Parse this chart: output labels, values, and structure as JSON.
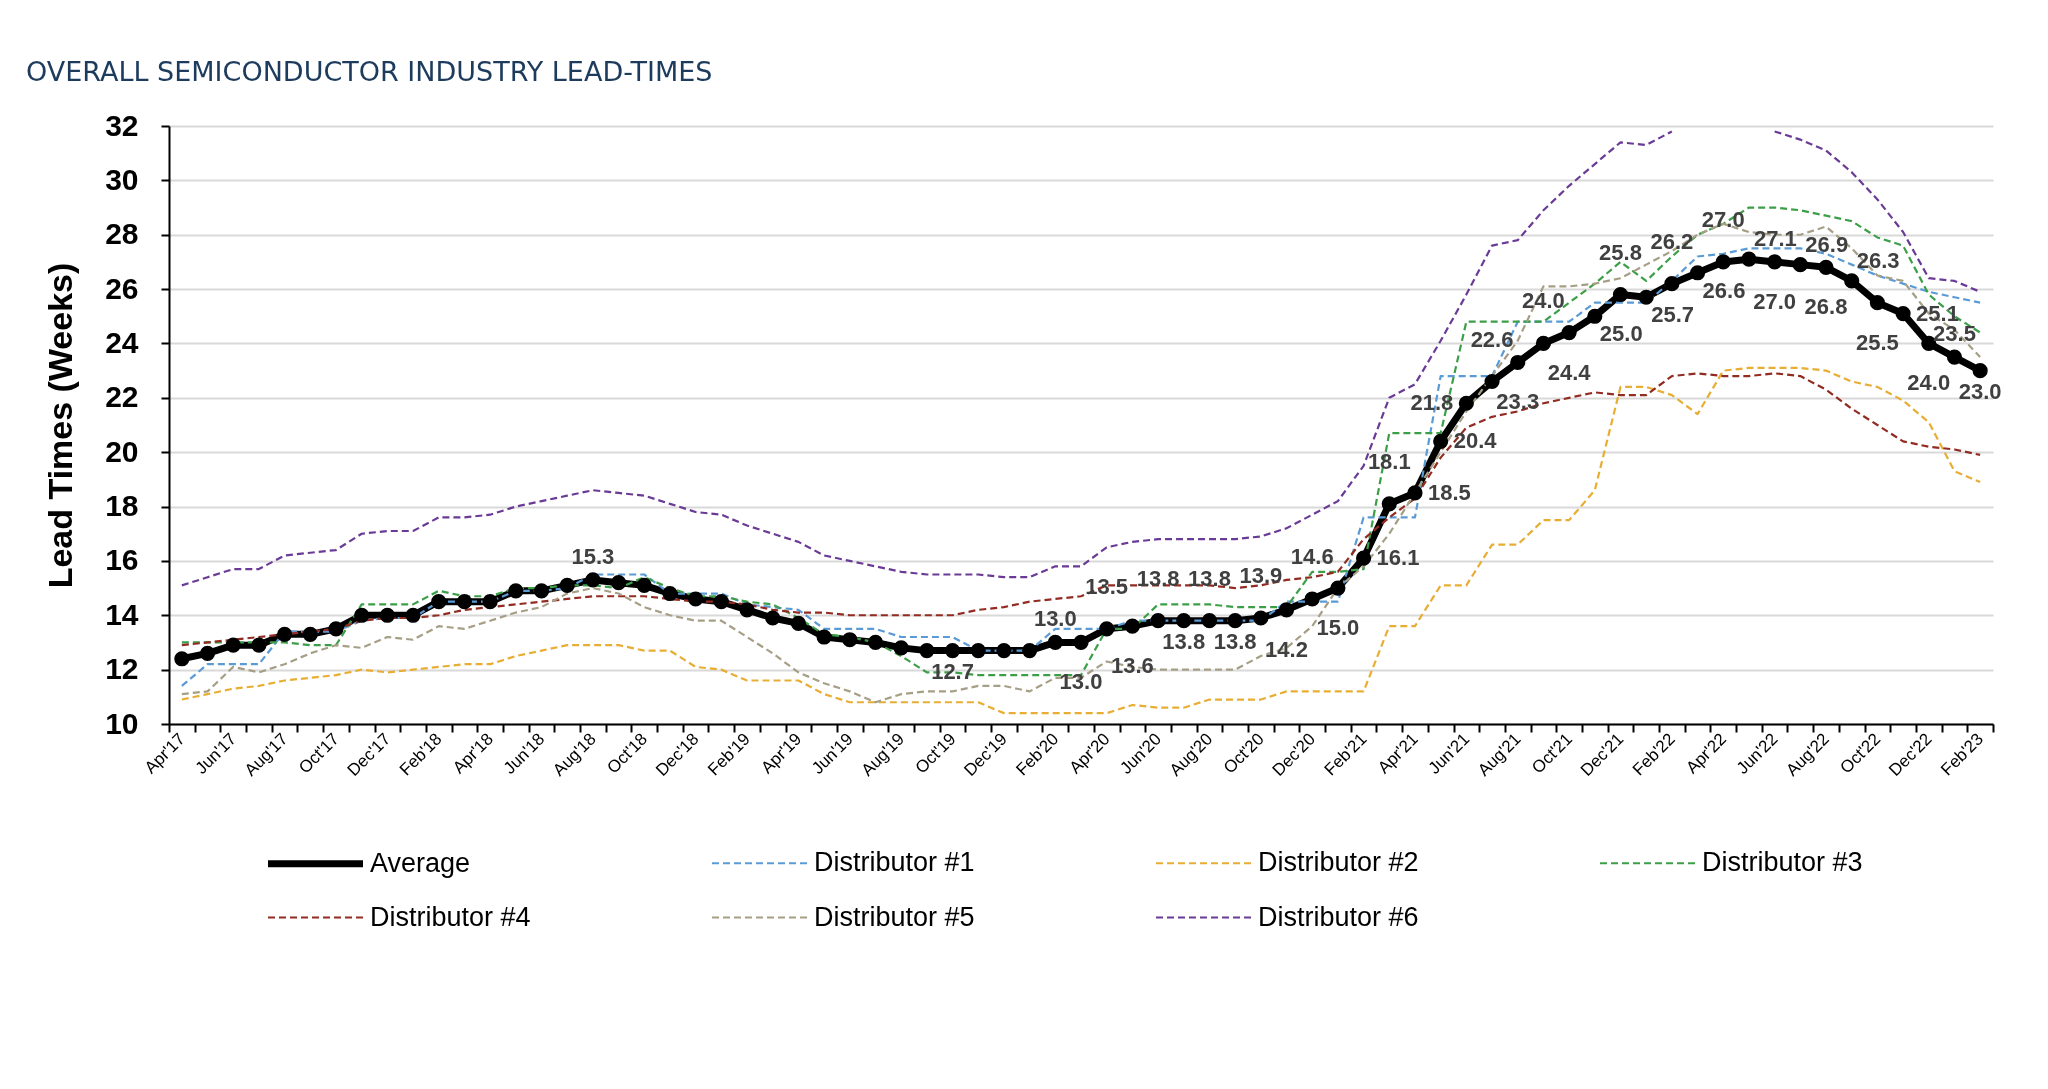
{
  "chart_data": {
    "type": "line",
    "title": "OVERALL SEMICONDUCTOR INDUSTRY LEAD-TIMES",
    "ylabel": "Lead Times (Weeks)",
    "categories": [
      "Apr'17",
      null,
      "Jun'17",
      null,
      "Aug'17",
      null,
      "Oct'17",
      null,
      "Dec'17",
      null,
      "Feb'18",
      null,
      "Apr'18",
      null,
      "Jun'18",
      null,
      "Aug'18",
      null,
      "Oct'18",
      null,
      "Dec'18",
      null,
      "Feb'19",
      null,
      "Apr'19",
      null,
      "Jun'19",
      null,
      "Aug'19",
      null,
      "Oct'19",
      null,
      "Dec'19",
      null,
      "Feb'20",
      null,
      "Apr'20",
      null,
      "Jun'20",
      null,
      "Aug'20",
      null,
      "Oct'20",
      null,
      "Dec'20",
      null,
      "Feb'21",
      null,
      "Apr'21",
      null,
      "Jun'21",
      null,
      "Aug'21",
      null,
      "Oct'21",
      null,
      "Dec'21",
      null,
      "Feb'22",
      null,
      "Apr'22",
      null,
      "Jun'22",
      null,
      "Aug'22",
      null,
      "Oct'22",
      null,
      "Dec'22",
      null,
      "Feb'23"
    ],
    "series": [
      {
        "name": "Average",
        "color": "#000000",
        "marker": "circle",
        "line_style": "solid",
        "values": [
          12.4,
          12.6,
          12.9,
          12.9,
          13.3,
          13.3,
          13.5,
          14.0,
          14.0,
          14.0,
          14.5,
          14.5,
          14.5,
          14.9,
          14.9,
          15.1,
          15.3,
          15.2,
          15.1,
          14.8,
          14.6,
          14.5,
          14.2,
          13.9,
          13.7,
          13.2,
          13.1,
          13.0,
          12.8,
          12.7,
          12.7,
          12.7,
          12.7,
          12.7,
          13.0,
          13.0,
          13.5,
          13.6,
          13.8,
          13.8,
          13.8,
          13.8,
          13.9,
          14.2,
          14.6,
          15.0,
          16.1,
          18.1,
          18.5,
          20.4,
          21.8,
          22.6,
          23.3,
          24.0,
          24.4,
          25.0,
          25.8,
          25.7,
          26.2,
          26.6,
          27.0,
          27.1,
          27.0,
          26.9,
          26.8,
          26.3,
          25.5,
          25.1,
          24.0,
          23.5,
          23.0
        ],
        "value_labels": [
          null,
          null,
          null,
          null,
          null,
          null,
          null,
          null,
          null,
          null,
          null,
          null,
          null,
          null,
          null,
          null,
          "15.3",
          null,
          null,
          null,
          null,
          null,
          null,
          null,
          null,
          null,
          null,
          null,
          null,
          null,
          "12.7",
          null,
          null,
          null,
          "13.0",
          "13.0",
          "13.5",
          "13.6",
          "13.8",
          "13.8",
          "13.8",
          "13.8",
          "13.9",
          "14.2",
          "14.6",
          "15.0",
          "16.1",
          "18.1",
          "18.5",
          "20.4",
          "21.8",
          "22.6",
          "23.3",
          "24.0",
          "24.4",
          "25.0",
          "25.8",
          "25.7",
          "26.2",
          "26.6",
          "27.0",
          "27.1",
          "27.0",
          "26.9",
          "26.8",
          "26.3",
          "25.5",
          "25.1",
          "24.0",
          "23.5",
          "23.0"
        ]
      },
      {
        "name": "Distributor #1",
        "color": "#5b9bd5",
        "marker": "none",
        "line_style": "dashed",
        "values": [
          11.4,
          12.2,
          12.2,
          12.2,
          13.4,
          13.4,
          13.4,
          13.8,
          13.9,
          13.9,
          14.5,
          14.5,
          14.5,
          14.9,
          14.9,
          15.0,
          15.5,
          15.5,
          15.5,
          14.8,
          14.8,
          14.8,
          14.4,
          14.3,
          14.2,
          13.5,
          13.5,
          13.5,
          13.2,
          13.2,
          13.2,
          12.7,
          12.7,
          12.7,
          13.5,
          13.5,
          13.5,
          13.8,
          13.8,
          13.8,
          13.8,
          13.8,
          13.8,
          14.5,
          14.5,
          14.5,
          17.6,
          17.6,
          17.6,
          22.8,
          22.8,
          22.8,
          24.8,
          24.8,
          24.8,
          25.5,
          25.5,
          25.5,
          26.3,
          27.2,
          27.3,
          27.5,
          27.5,
          27.5,
          27.3,
          26.9,
          26.5,
          26.2,
          25.9,
          25.7,
          25.5
        ]
      },
      {
        "name": "Distributor #2",
        "color": "#e8ad33",
        "marker": "none",
        "line_style": "dashed",
        "values": [
          10.9,
          11.1,
          11.3,
          11.4,
          11.6,
          11.7,
          11.8,
          12.0,
          11.9,
          12.0,
          12.1,
          12.2,
          12.2,
          12.5,
          12.7,
          12.9,
          12.9,
          12.9,
          12.7,
          12.7,
          12.1,
          12.0,
          11.6,
          11.6,
          11.6,
          11.1,
          10.8,
          10.8,
          10.8,
          10.8,
          10.8,
          10.8,
          10.4,
          10.4,
          10.4,
          10.4,
          10.4,
          10.7,
          10.6,
          10.6,
          10.9,
          10.9,
          10.9,
          11.2,
          11.2,
          11.2,
          11.2,
          13.6,
          13.6,
          15.1,
          15.1,
          16.6,
          16.6,
          17.5,
          17.5,
          18.6,
          22.4,
          22.4,
          22.1,
          21.4,
          23.0,
          23.1,
          23.1,
          23.1,
          23.0,
          22.6,
          22.4,
          21.9,
          21.1,
          19.3,
          18.9
        ]
      },
      {
        "name": "Distributor #3",
        "color": "#3c9f48",
        "marker": "none",
        "line_style": "dashed",
        "values": [
          13.0,
          13.0,
          13.0,
          13.0,
          13.0,
          12.9,
          12.9,
          14.4,
          14.4,
          14.4,
          14.9,
          14.7,
          14.7,
          15.0,
          15.0,
          15.1,
          15.1,
          15.0,
          15.4,
          15.0,
          14.7,
          14.7,
          14.5,
          14.4,
          13.9,
          13.3,
          13.2,
          13.0,
          12.5,
          11.9,
          11.9,
          11.8,
          11.8,
          11.8,
          11.8,
          11.8,
          13.5,
          13.5,
          14.4,
          14.4,
          14.4,
          14.3,
          14.3,
          14.3,
          15.6,
          15.6,
          15.7,
          20.7,
          20.7,
          20.7,
          24.8,
          24.8,
          24.8,
          24.8,
          25.5,
          26.2,
          27.0,
          26.3,
          27.2,
          28.0,
          28.4,
          29.0,
          29.0,
          28.9,
          28.7,
          28.5,
          27.9,
          27.6,
          25.8,
          25.0,
          24.4
        ]
      },
      {
        "name": "Distributor #4",
        "color": "#922b21",
        "marker": "none",
        "line_style": "dashed",
        "values": [
          12.9,
          13.0,
          13.1,
          13.2,
          13.3,
          13.4,
          13.5,
          13.8,
          13.9,
          13.9,
          14.0,
          14.2,
          14.3,
          14.4,
          14.5,
          14.6,
          14.7,
          14.7,
          14.7,
          14.6,
          14.5,
          14.5,
          14.4,
          14.2,
          14.1,
          14.1,
          14.0,
          14.0,
          14.0,
          14.0,
          14.0,
          14.2,
          14.3,
          14.5,
          14.6,
          14.7,
          15.1,
          15.1,
          15.1,
          15.1,
          15.1,
          15.0,
          15.1,
          15.3,
          15.4,
          15.6,
          16.8,
          17.6,
          18.3,
          19.8,
          20.9,
          21.3,
          21.5,
          21.8,
          22.0,
          22.2,
          22.1,
          22.1,
          22.8,
          22.9,
          22.8,
          22.8,
          22.9,
          22.8,
          22.3,
          21.6,
          21.0,
          20.4,
          20.2,
          20.1,
          19.9
        ]
      },
      {
        "name": "Distributor #5",
        "color": "#a69f86",
        "marker": "none",
        "line_style": "dashed",
        "values": [
          11.1,
          11.2,
          12.1,
          11.9,
          12.2,
          12.6,
          12.9,
          12.8,
          13.2,
          13.1,
          13.6,
          13.5,
          13.8,
          14.1,
          14.3,
          14.8,
          15.0,
          14.8,
          14.3,
          14.0,
          13.8,
          13.8,
          13.2,
          12.6,
          11.9,
          11.5,
          11.2,
          10.8,
          11.1,
          11.2,
          11.2,
          11.4,
          11.4,
          11.2,
          11.7,
          11.7,
          12.3,
          12.1,
          12.0,
          12.0,
          12.0,
          12.0,
          12.5,
          12.8,
          13.6,
          15.0,
          15.8,
          17.0,
          18.5,
          20.0,
          21.5,
          22.8,
          24.1,
          26.1,
          26.1,
          26.2,
          26.4,
          26.9,
          27.4,
          28.0,
          28.4,
          28.1,
          28.0,
          28.0,
          28.3,
          27.5,
          26.5,
          26.3,
          25.1,
          24.5,
          23.5
        ]
      },
      {
        "name": "Distributor #6",
        "color": "#6a3b96",
        "marker": "none",
        "line_style": "dashed",
        "values": [
          15.1,
          15.4,
          15.7,
          15.7,
          16.2,
          16.3,
          16.4,
          17.0,
          17.1,
          17.1,
          17.6,
          17.6,
          17.7,
          18.0,
          18.2,
          18.4,
          18.6,
          18.5,
          18.4,
          18.1,
          17.8,
          17.7,
          17.3,
          17.0,
          16.7,
          16.2,
          16.0,
          15.8,
          15.6,
          15.5,
          15.5,
          15.5,
          15.4,
          15.4,
          15.8,
          15.8,
          16.5,
          16.7,
          16.8,
          16.8,
          16.8,
          16.8,
          16.9,
          17.2,
          17.7,
          18.2,
          19.5,
          22.0,
          22.5,
          24.1,
          25.8,
          27.6,
          27.8,
          28.9,
          29.8,
          30.6,
          31.4,
          31.3,
          31.8,
          null,
          null,
          null,
          31.8,
          31.5,
          31.1,
          30.3,
          29.3,
          28.1,
          26.4,
          26.3,
          25.9
        ]
      }
    ],
    "ylim": [
      10,
      32
    ],
    "yticks": [
      10,
      12,
      14,
      16,
      18,
      20,
      22,
      24,
      26,
      28,
      30,
      32
    ],
    "grid": "y",
    "legend": "bottom"
  }
}
